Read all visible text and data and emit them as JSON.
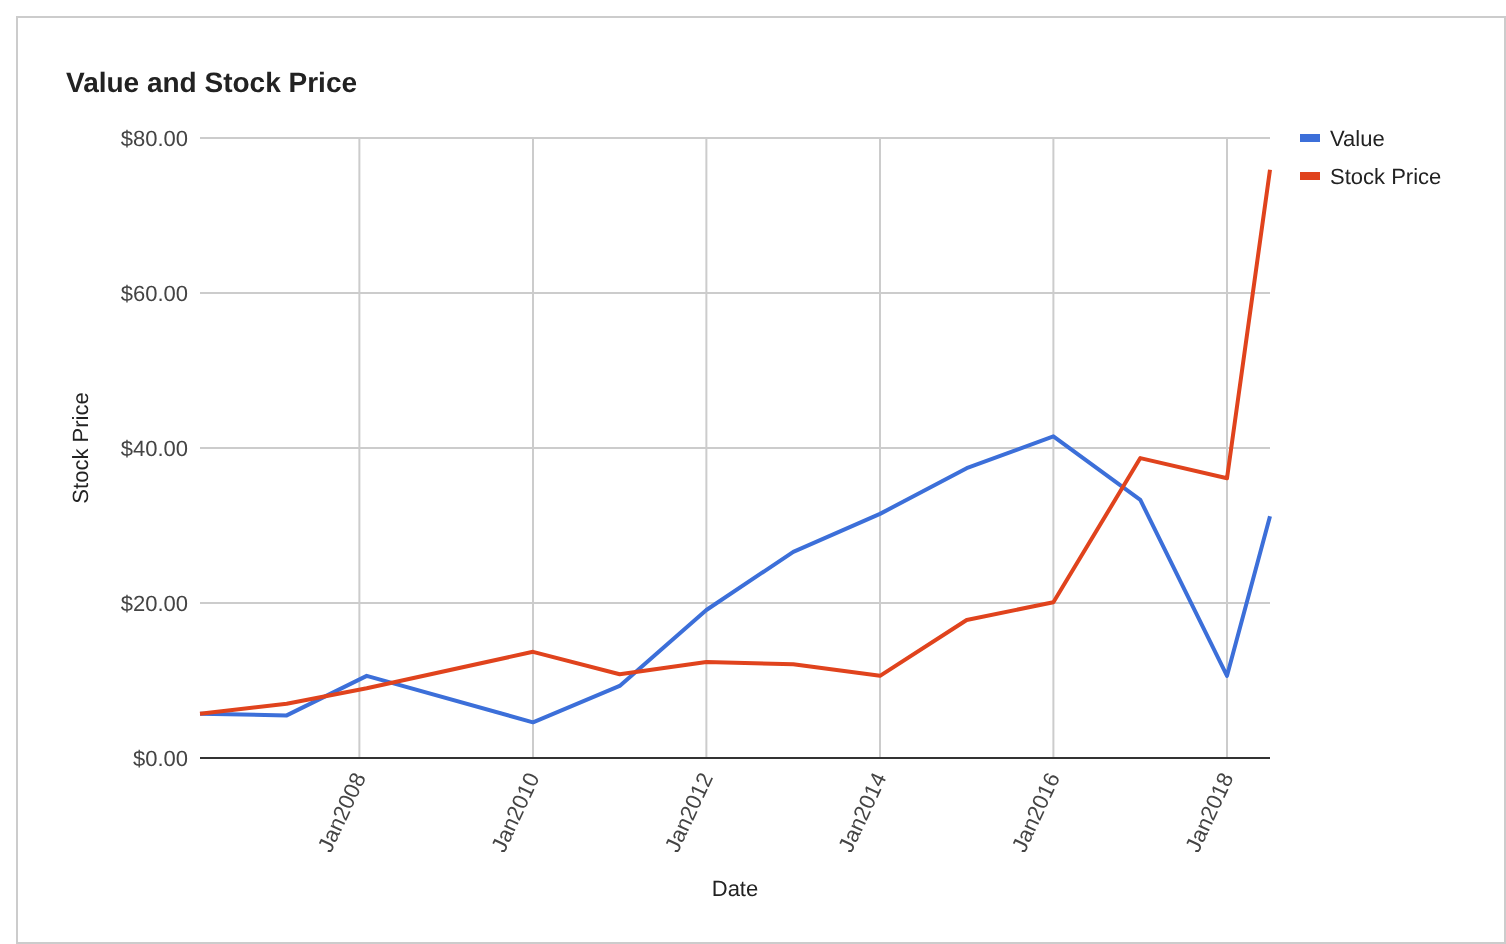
{
  "chart_data": {
    "type": "line",
    "title": "Value and Stock Price",
    "xlabel": "Date",
    "ylabel": "Stock Price",
    "x": [
      "2006-03",
      "2007-03",
      "2008-02",
      "2010-01",
      "2011-01",
      "2012-01",
      "2013-01",
      "2014-01",
      "2015-01",
      "2016-01",
      "2017-01",
      "2018-01",
      "2018-07"
    ],
    "series": [
      {
        "name": "Value",
        "color": "#3c6fd9",
        "values": [
          5.7,
          5.5,
          10.6,
          4.6,
          9.3,
          19.1,
          26.6,
          31.5,
          37.4,
          41.5,
          33.3,
          10.6,
          31.2
        ]
      },
      {
        "name": "Stock Price",
        "color": "#e0431d",
        "values": [
          5.7,
          7.0,
          9.0,
          13.7,
          10.8,
          12.4,
          12.1,
          10.6,
          17.8,
          20.1,
          38.7,
          36.1,
          75.9
        ]
      }
    ],
    "xlim": [
      "2006-03",
      "2018-07"
    ],
    "xticks": [
      {
        "value": "2008-01",
        "label": "Jan2008"
      },
      {
        "value": "2010-01",
        "label": "Jan2010"
      },
      {
        "value": "2012-01",
        "label": "Jan2012"
      },
      {
        "value": "2014-01",
        "label": "Jan2014"
      },
      {
        "value": "2016-01",
        "label": "Jan2016"
      },
      {
        "value": "2018-01",
        "label": "Jan2018"
      }
    ],
    "ylim": [
      0,
      80
    ],
    "yticks": [
      {
        "value": 0,
        "label": "$0.00"
      },
      {
        "value": 20,
        "label": "$20.00"
      },
      {
        "value": 40,
        "label": "$40.00"
      },
      {
        "value": 60,
        "label": "$60.00"
      },
      {
        "value": 80,
        "label": "$80.00"
      }
    ],
    "grid": true,
    "legend": "top right",
    "marker": "none",
    "line_style": "solid"
  }
}
